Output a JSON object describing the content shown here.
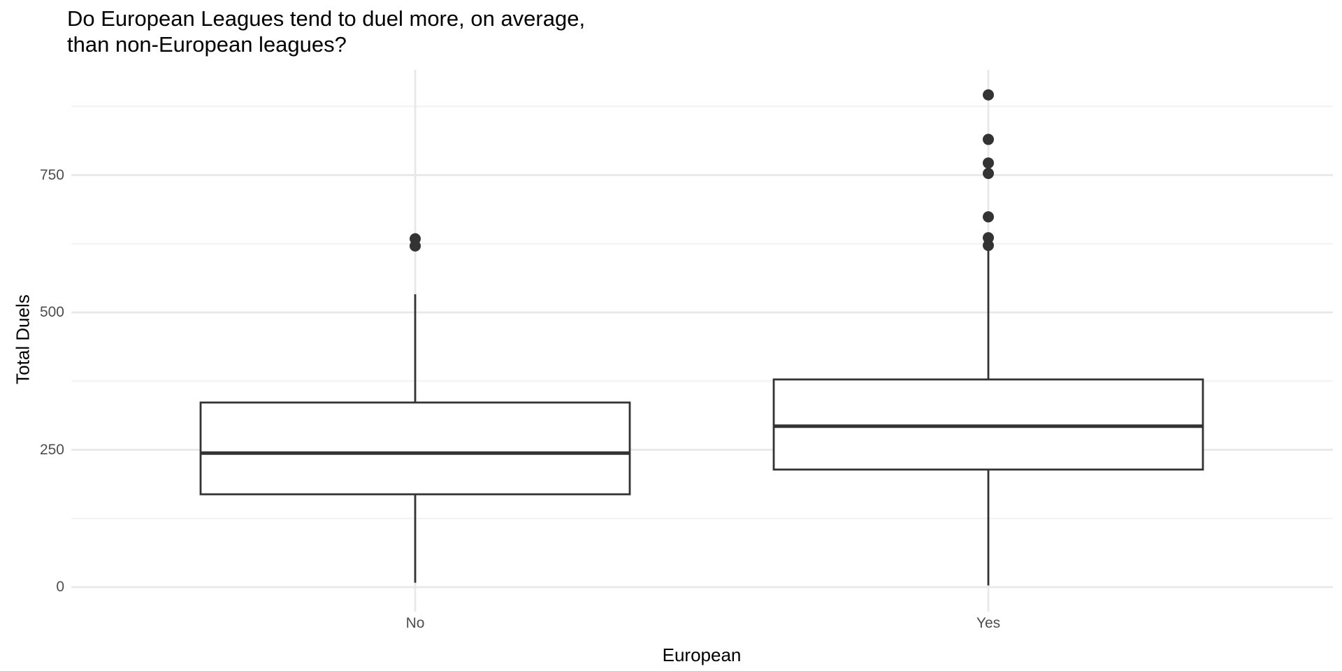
{
  "title": {
    "line1": "Do European Leagues tend to duel more, on average,",
    "line2": "than non-European leagues?"
  },
  "y_axis": {
    "title": "Total Duels",
    "tick_labels": [
      "0",
      "250",
      "500",
      "750"
    ],
    "tick_values": [
      0,
      250,
      500,
      750
    ],
    "minor_tick_values": [
      125,
      375,
      625,
      875
    ]
  },
  "x_axis": {
    "title": "European",
    "categories": [
      "No",
      "Yes"
    ]
  },
  "chart_data": {
    "type": "boxplot",
    "title": "Do European Leagues tend to duel more, on average, than non-European leagues?",
    "xlabel": "European",
    "ylabel": "Total Duels",
    "ylim": [
      -45,
      945
    ],
    "yticks": [
      0,
      250,
      500,
      750
    ],
    "grid": "horizontal-major-minor plus one vertical gridline per category",
    "legend": "none",
    "categories": [
      "No",
      "Yes"
    ],
    "series": [
      {
        "category": "No",
        "whisker_low": 8,
        "q1": 169,
        "median": 244,
        "q3": 336,
        "whisker_high": 533,
        "outliers": [
          634,
          621
        ]
      },
      {
        "category": "Yes",
        "whisker_low": 3,
        "q1": 214,
        "median": 293,
        "q3": 378,
        "whisker_high": 628,
        "outliers": [
          896,
          815,
          772,
          753,
          674,
          636,
          622
        ]
      }
    ]
  },
  "colors": {
    "box_stroke": "#333333",
    "box_fill": "#ffffff",
    "outlier_fill": "#333333",
    "grid_major": "#e8e8e8",
    "grid_minor": "#f2f2f2",
    "tick_label": "#4d4d4d",
    "title_text": "#000000",
    "background": "#ffffff"
  }
}
